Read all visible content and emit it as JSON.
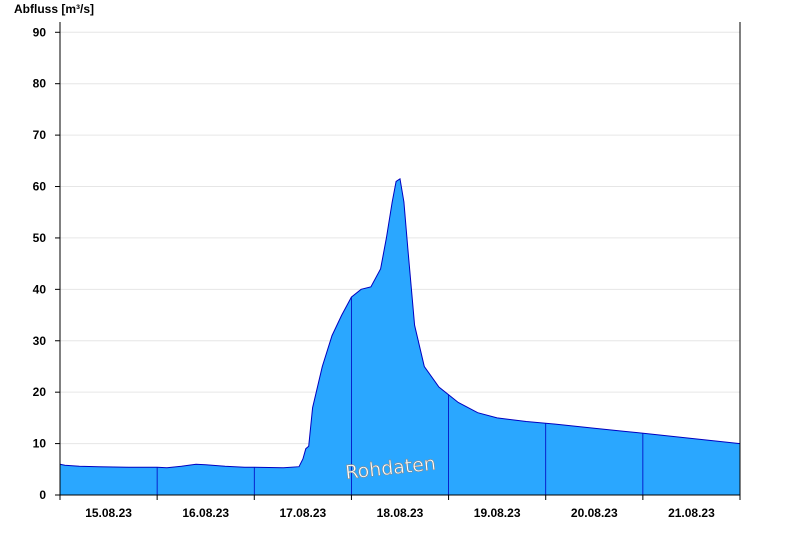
{
  "chart_data": {
    "type": "area",
    "ylabel": "Abfluss [m³/s]",
    "watermark": "Rohdaten",
    "ylim": [
      0,
      92
    ],
    "yticks": [
      0,
      10,
      20,
      30,
      40,
      50,
      60,
      70,
      80,
      90
    ],
    "xlim": [
      -0.5,
      6.5
    ],
    "day_labels": [
      "15.08.23",
      "16.08.23",
      "17.08.23",
      "18.08.23",
      "19.08.23",
      "20.08.23",
      "21.08.23"
    ],
    "grid": true,
    "colors": {
      "fill": "#2aa7ff",
      "line": "#0000c0",
      "grid": "#e6e6e6",
      "axis": "#000000"
    },
    "series": [
      {
        "x": [
          -0.5,
          -0.45,
          -0.3,
          -0.1,
          0.2,
          0.5,
          0.6,
          0.75,
          0.9,
          1.0,
          1.2,
          1.4,
          1.5,
          1.8,
          1.96,
          2.0,
          2.03,
          2.06,
          2.1,
          2.2,
          2.3,
          2.4,
          2.5,
          2.6,
          2.7,
          2.8,
          2.86,
          2.92,
          2.96,
          3.0,
          3.04,
          3.08,
          3.15,
          3.25,
          3.4,
          3.6,
          3.8,
          4.0,
          4.3,
          4.6,
          5.0,
          5.3,
          5.6,
          5.9,
          6.2,
          6.5
        ],
        "y": [
          6.0,
          5.8,
          5.6,
          5.5,
          5.4,
          5.4,
          5.3,
          5.6,
          6.0,
          5.9,
          5.6,
          5.4,
          5.4,
          5.3,
          5.5,
          7.0,
          9.0,
          9.5,
          17.0,
          25.0,
          31.0,
          35.0,
          38.5,
          40.0,
          40.5,
          44.0,
          50.0,
          57.0,
          61.0,
          61.5,
          57.0,
          48.0,
          33.0,
          25.0,
          21.0,
          18.0,
          16.0,
          15.0,
          14.3,
          13.8,
          13.0,
          12.4,
          11.8,
          11.2,
          10.6,
          10.0
        ]
      }
    ]
  }
}
